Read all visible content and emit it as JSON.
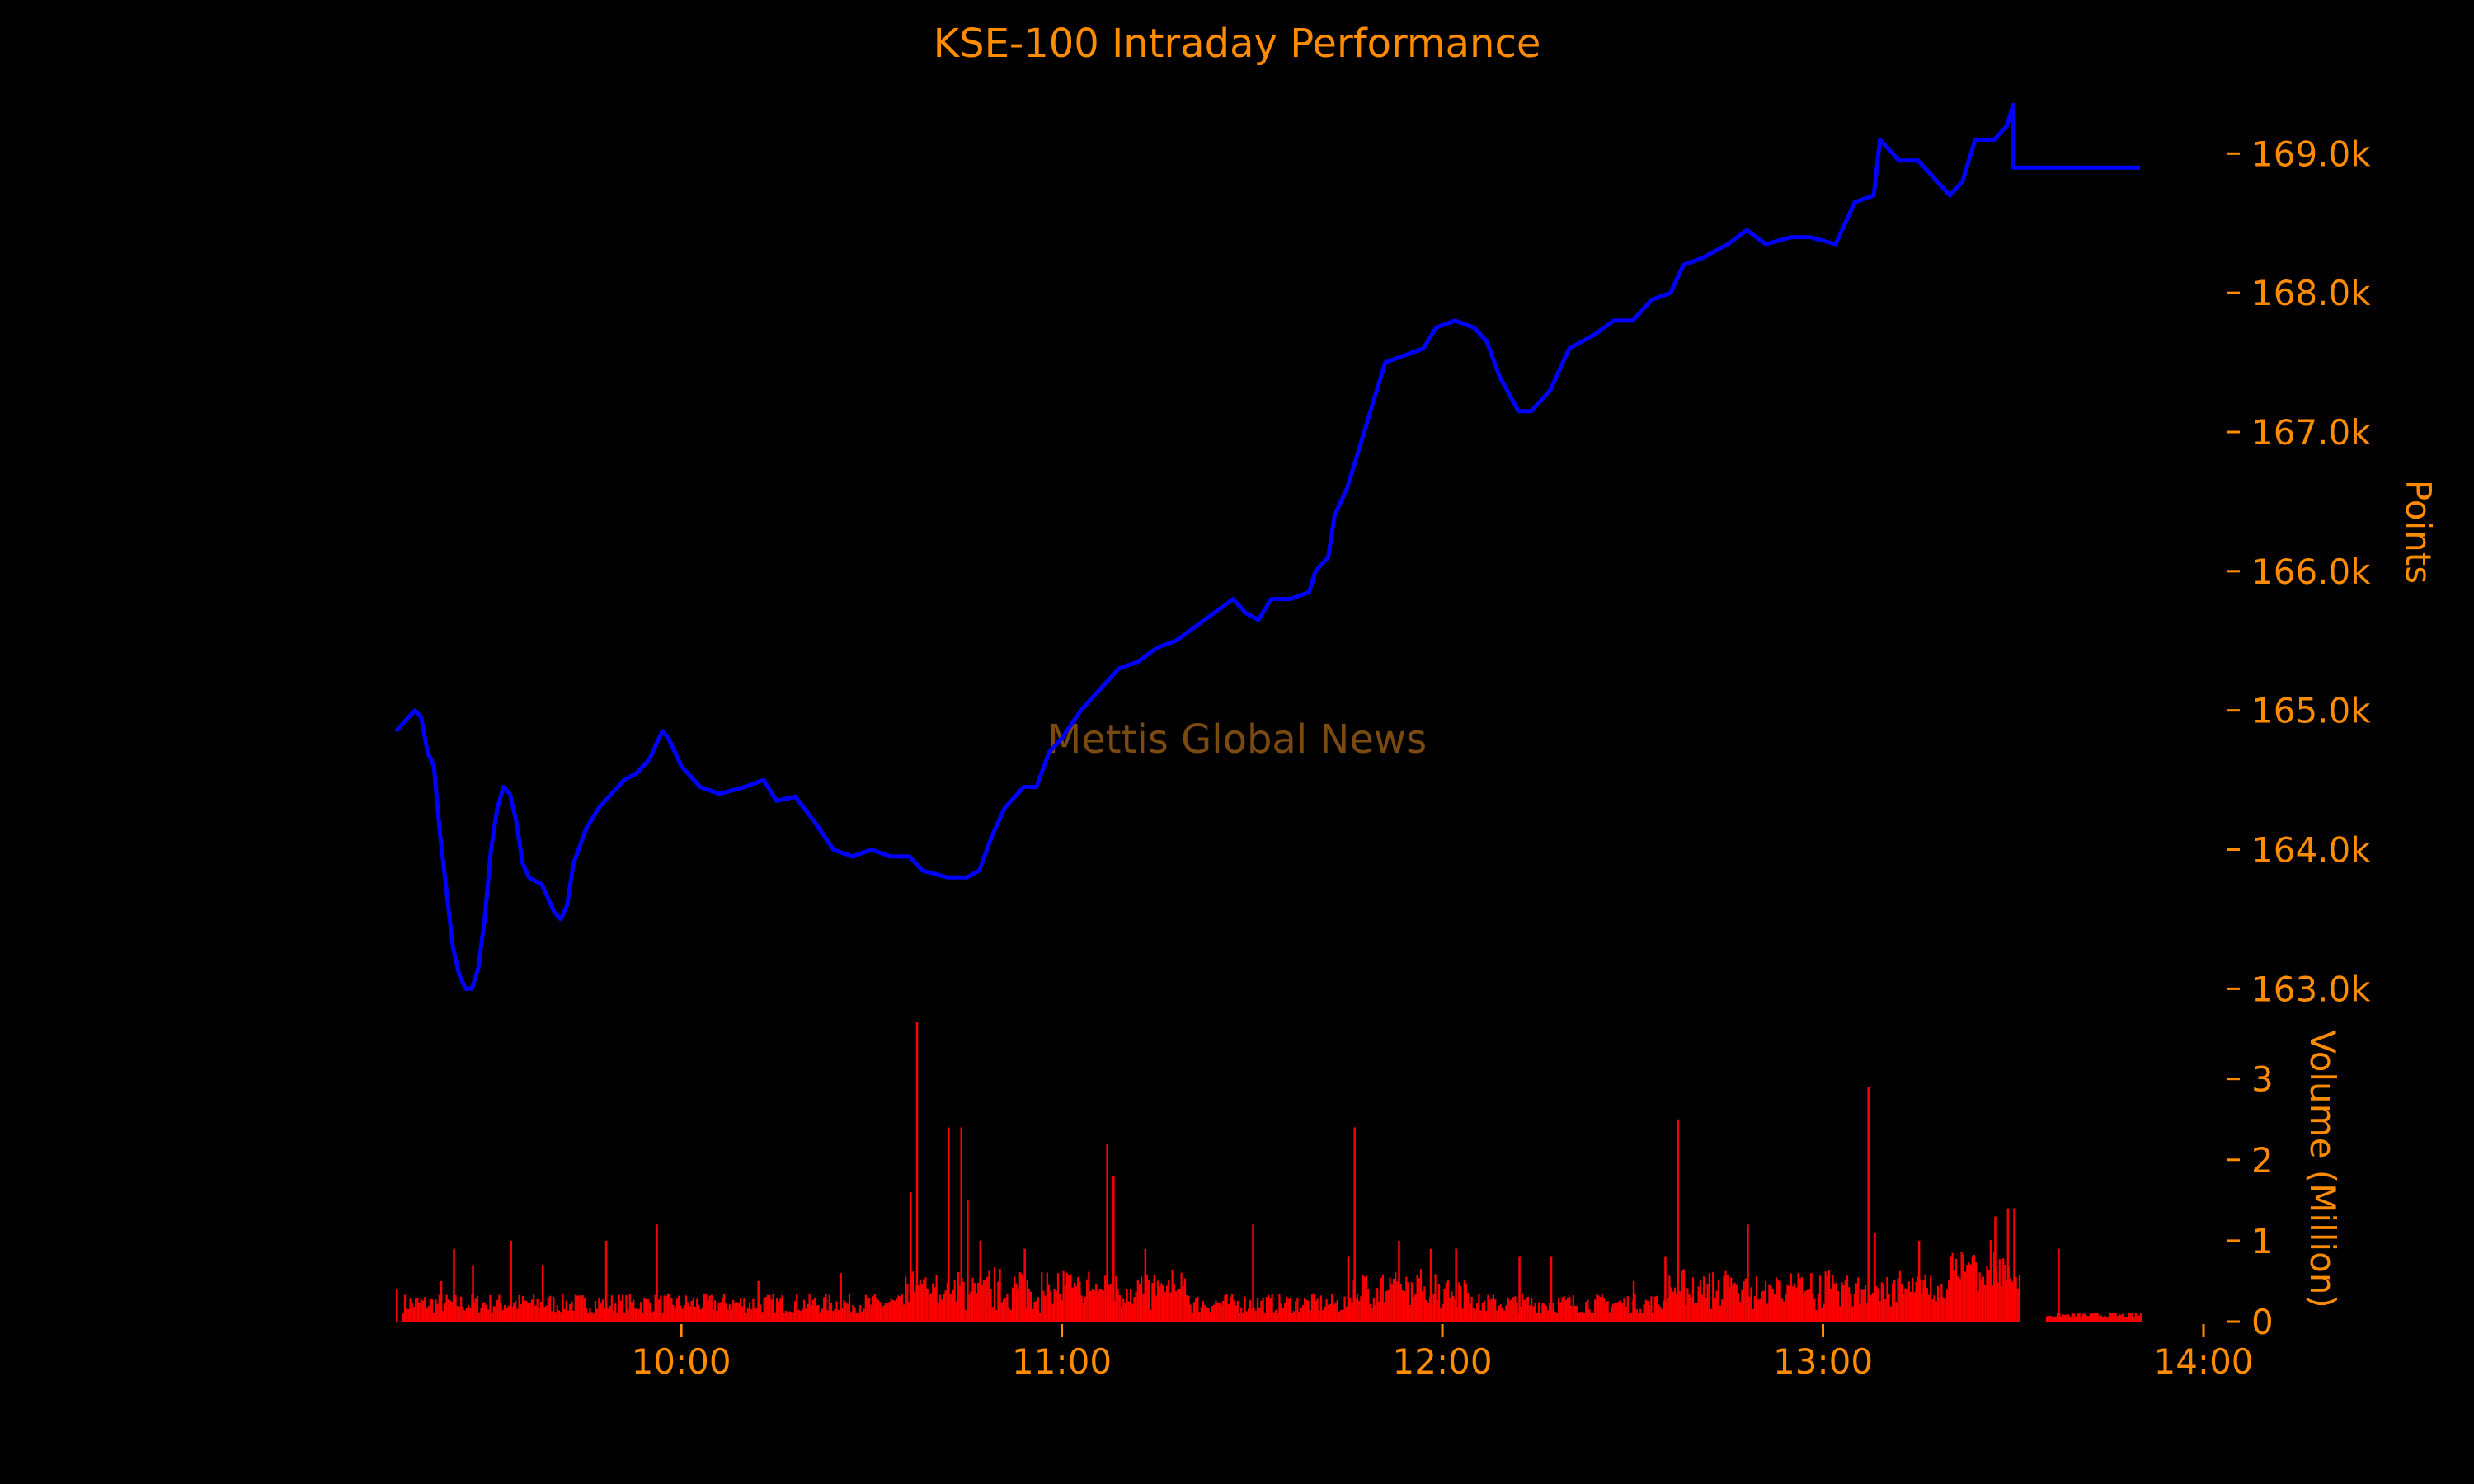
{
  "chart_data": [
    {
      "type": "line",
      "title": "KSE-100 Intraday Performance",
      "ylabel": "Points",
      "ylim": [
        162700,
        169600
      ],
      "yticks": [
        163000,
        164000,
        165000,
        166000,
        167000,
        168000,
        169000
      ],
      "ytick_labels": [
        "163.0k",
        "164.0k",
        "165.0k",
        "166.0k",
        "167.0k",
        "168.0k",
        "169.0k"
      ],
      "xlim": [
        "09:15",
        "14:00"
      ],
      "grid": false,
      "series": [
        {
          "color": "#0000ff",
          "points": [
            [
              "09:15",
              164850
            ],
            [
              "09:17",
              164950
            ],
            [
              "09:18",
              165000
            ],
            [
              "09:19",
              164950
            ],
            [
              "09:20",
              164700
            ],
            [
              "09:21",
              164600
            ],
            [
              "09:22",
              164100
            ],
            [
              "09:23",
              163700
            ],
            [
              "09:24",
              163300
            ],
            [
              "09:25",
              163100
            ],
            [
              "09:26",
              163000
            ],
            [
              "09:27",
              163000
            ],
            [
              "09:28",
              163150
            ],
            [
              "09:29",
              163500
            ],
            [
              "09:30",
              164000
            ],
            [
              "09:31",
              164300
            ],
            [
              "09:32",
              164450
            ],
            [
              "09:33",
              164400
            ],
            [
              "09:34",
              164200
            ],
            [
              "09:35",
              163900
            ],
            [
              "09:36",
              163800
            ],
            [
              "09:38",
              163750
            ],
            [
              "09:40",
              163550
            ],
            [
              "09:41",
              163500
            ],
            [
              "09:42",
              163600
            ],
            [
              "09:43",
              163900
            ],
            [
              "09:45",
              164150
            ],
            [
              "09:47",
              164300
            ],
            [
              "09:49",
              164400
            ],
            [
              "09:51",
              164500
            ],
            [
              "09:53",
              164550
            ],
            [
              "09:55",
              164650
            ],
            [
              "09:57",
              164850
            ],
            [
              "09:58",
              164800
            ],
            [
              "10:00",
              164600
            ],
            [
              "10:03",
              164450
            ],
            [
              "10:06",
              164400
            ],
            [
              "10:10",
              164450
            ],
            [
              "10:13",
              164500
            ],
            [
              "10:15",
              164350
            ],
            [
              "10:18",
              164380
            ],
            [
              "10:21",
              164200
            ],
            [
              "10:24",
              164000
            ],
            [
              "10:27",
              163950
            ],
            [
              "10:30",
              164000
            ],
            [
              "10:33",
              163950
            ],
            [
              "10:36",
              163950
            ],
            [
              "10:38",
              163850
            ],
            [
              "10:42",
              163800
            ],
            [
              "10:45",
              163800
            ],
            [
              "10:47",
              163850
            ],
            [
              "10:49",
              164100
            ],
            [
              "10:51",
              164300
            ],
            [
              "10:54",
              164450
            ],
            [
              "10:56",
              164450
            ],
            [
              "10:58",
              164700
            ],
            [
              "11:00",
              164800
            ],
            [
              "11:03",
              165000
            ],
            [
              "11:06",
              165150
            ],
            [
              "11:09",
              165300
            ],
            [
              "11:12",
              165350
            ],
            [
              "11:15",
              165450
            ],
            [
              "11:18",
              165500
            ],
            [
              "11:21",
              165600
            ],
            [
              "11:24",
              165700
            ],
            [
              "11:27",
              165800
            ],
            [
              "11:29",
              165700
            ],
            [
              "11:31",
              165650
            ],
            [
              "11:33",
              165800
            ],
            [
              "11:36",
              165800
            ],
            [
              "11:39",
              165850
            ],
            [
              "11:40",
              166000
            ],
            [
              "11:42",
              166100
            ],
            [
              "11:43",
              166400
            ],
            [
              "11:45",
              166600
            ],
            [
              "11:47",
              166900
            ],
            [
              "11:49",
              167200
            ],
            [
              "11:51",
              167500
            ],
            [
              "11:54",
              167550
            ],
            [
              "11:57",
              167600
            ],
            [
              "11:59",
              167750
            ],
            [
              "12:02",
              167800
            ],
            [
              "12:05",
              167750
            ],
            [
              "12:07",
              167650
            ],
            [
              "12:09",
              167400
            ],
            [
              "12:12",
              167150
            ],
            [
              "12:14",
              167150
            ],
            [
              "12:17",
              167300
            ],
            [
              "12:20",
              167600
            ],
            [
              "12:24",
              167700
            ],
            [
              "12:27",
              167800
            ],
            [
              "12:30",
              167800
            ],
            [
              "12:33",
              167950
            ],
            [
              "12:36",
              168000
            ],
            [
              "12:38",
              168200
            ],
            [
              "12:41",
              168250
            ],
            [
              "12:45",
              168350
            ],
            [
              "12:48",
              168450
            ],
            [
              "12:51",
              168350
            ],
            [
              "12:55",
              168400
            ],
            [
              "12:58",
              168400
            ],
            [
              "13:02",
              168350
            ],
            [
              "13:05",
              168650
            ],
            [
              "13:08",
              168700
            ],
            [
              "13:09",
              169100
            ],
            [
              "13:12",
              168950
            ],
            [
              "13:15",
              168950
            ],
            [
              "13:18",
              168800
            ],
            [
              "13:20",
              168700
            ],
            [
              "13:22",
              168800
            ],
            [
              "13:24",
              169100
            ],
            [
              "13:27",
              169100
            ],
            [
              "13:29",
              169200
            ],
            [
              "13:30",
              169350
            ],
            [
              "13:30",
              168900
            ],
            [
              "13:50",
              168900
            ]
          ]
        }
      ]
    },
    {
      "type": "bar",
      "ylabel": "Volume (Million)",
      "ylim": [
        0,
        3.7
      ],
      "yticks": [
        0,
        1,
        2,
        3
      ],
      "ytick_labels": [
        "0",
        "1",
        "2",
        "3"
      ],
      "xlim": [
        "09:15",
        "14:00"
      ],
      "xticks": [
        "10:00",
        "11:00",
        "12:00",
        "13:00",
        "14:00"
      ],
      "grid": false,
      "series": [
        {
          "color": "#ff0000",
          "spikes": [
            [
              "09:15",
              0.4
            ],
            [
              "09:22",
              0.5
            ],
            [
              "09:24",
              0.9
            ],
            [
              "09:27",
              0.7
            ],
            [
              "09:33",
              1.0
            ],
            [
              "09:38",
              0.7
            ],
            [
              "09:48",
              1.0
            ],
            [
              "09:56",
              1.2
            ],
            [
              "10:12",
              0.5
            ],
            [
              "10:25",
              0.6
            ],
            [
              "10:36",
              1.6
            ],
            [
              "10:37",
              3.7
            ],
            [
              "10:42",
              2.4
            ],
            [
              "10:44",
              2.4
            ],
            [
              "10:45",
              1.5
            ],
            [
              "10:47",
              1.0
            ],
            [
              "10:54",
              0.9
            ],
            [
              "11:07",
              2.2
            ],
            [
              "11:08",
              1.8
            ],
            [
              "11:13",
              0.9
            ],
            [
              "11:30",
              1.2
            ],
            [
              "11:45",
              0.8
            ],
            [
              "11:46",
              2.4
            ],
            [
              "11:53",
              1.0
            ],
            [
              "11:58",
              0.9
            ],
            [
              "12:02",
              0.9
            ],
            [
              "12:12",
              0.8
            ],
            [
              "12:17",
              0.8
            ],
            [
              "12:30",
              0.5
            ],
            [
              "12:35",
              0.8
            ],
            [
              "12:37",
              2.5
            ],
            [
              "12:48",
              1.2
            ],
            [
              "12:58",
              0.6
            ],
            [
              "13:07",
              2.9
            ],
            [
              "13:08",
              1.1
            ],
            [
              "13:15",
              1.0
            ],
            [
              "13:20",
              0.8
            ],
            [
              "13:27",
              1.3
            ],
            [
              "13:29",
              1.4
            ],
            [
              "13:30",
              1.4
            ],
            [
              "13:37",
              0.9
            ],
            [
              "13:50",
              0.1
            ]
          ]
        }
      ]
    }
  ],
  "watermark": "Mettis Global News"
}
